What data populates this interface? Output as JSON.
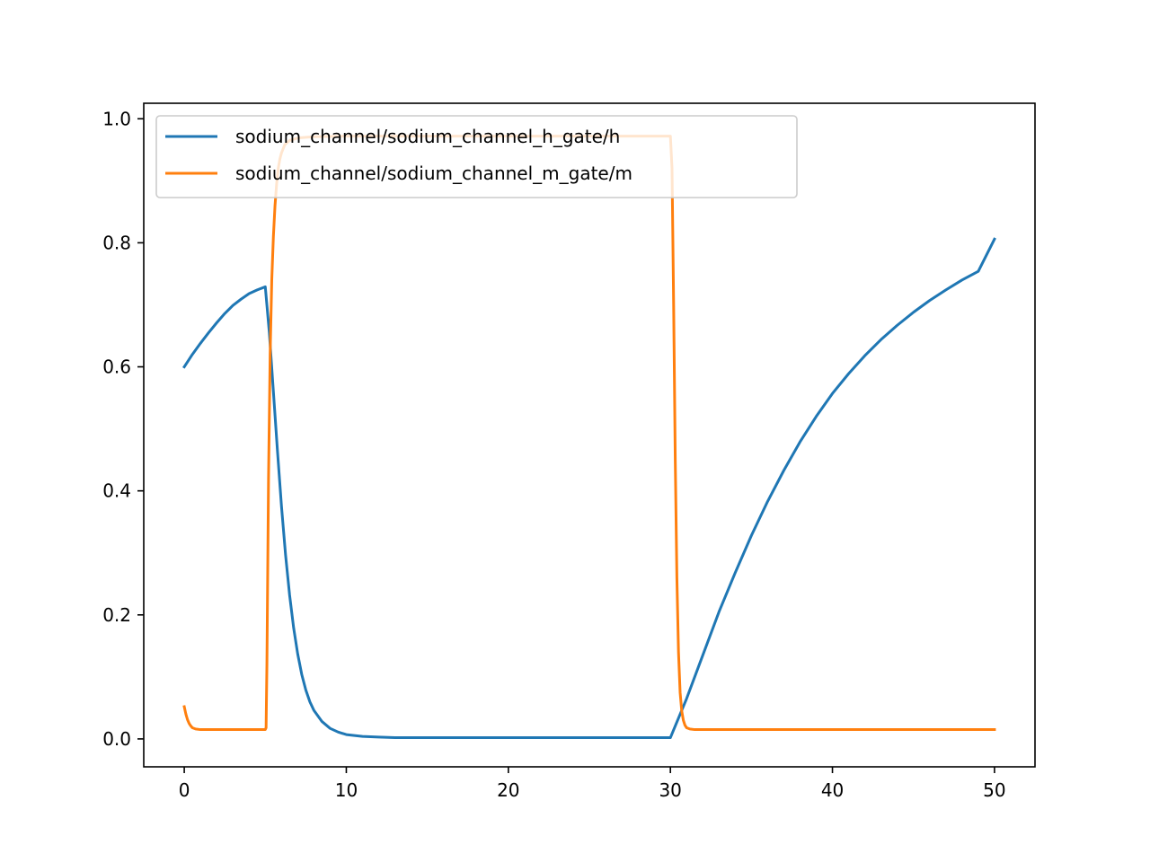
{
  "chart_data": {
    "type": "line",
    "title": "",
    "xlabel": "",
    "ylabel": "",
    "xlim": [
      -2.5,
      52.5
    ],
    "ylim": [
      -0.045,
      1.025
    ],
    "xticks": [
      0,
      10,
      20,
      30,
      40,
      50
    ],
    "yticks": [
      0.0,
      0.2,
      0.4,
      0.6,
      0.8,
      1.0
    ],
    "xtick_labels": [
      "0",
      "10",
      "20",
      "30",
      "40",
      "50"
    ],
    "ytick_labels": [
      "0.0",
      "0.2",
      "0.4",
      "0.6",
      "0.8",
      "1.0"
    ],
    "grid": false,
    "legend_position": "upper left",
    "series": [
      {
        "name": "sodium_channel/sodium_channel_h_gate/h",
        "color": "#1f77b4",
        "x": [
          0,
          0.5,
          1,
          1.5,
          2,
          2.5,
          3,
          3.5,
          4,
          4.5,
          5,
          5.25,
          5.5,
          5.75,
          6,
          6.25,
          6.5,
          6.75,
          7,
          7.25,
          7.5,
          7.75,
          8,
          8.5,
          9,
          9.5,
          10,
          11,
          12,
          13,
          14,
          15,
          20,
          25,
          30,
          31,
          32,
          33,
          34,
          35,
          36,
          37,
          38,
          39,
          40,
          41,
          42,
          43,
          44,
          45,
          46,
          47,
          48,
          49,
          50
        ],
        "y": [
          0.6,
          0.62,
          0.638,
          0.655,
          0.671,
          0.686,
          0.699,
          0.709,
          0.718,
          0.724,
          0.729,
          0.655,
          0.56,
          0.465,
          0.375,
          0.297,
          0.232,
          0.179,
          0.137,
          0.104,
          0.079,
          0.06,
          0.046,
          0.028,
          0.017,
          0.011,
          0.007,
          0.004,
          0.003,
          0.002,
          0.002,
          0.002,
          0.002,
          0.002,
          0.002,
          0.065,
          0.135,
          0.205,
          0.268,
          0.328,
          0.383,
          0.433,
          0.479,
          0.52,
          0.557,
          0.589,
          0.618,
          0.644,
          0.667,
          0.688,
          0.707,
          0.724,
          0.74,
          0.754,
          0.806
        ]
      },
      {
        "name": "sodium_channel/sodium_channel_m_gate/m",
        "color": "#ff7f0e",
        "x": [
          0,
          0.1,
          0.2,
          0.3,
          0.4,
          0.5,
          0.7,
          1,
          2,
          3,
          4,
          5,
          5.05,
          5.1,
          5.2,
          5.3,
          5.4,
          5.5,
          5.6,
          5.7,
          5.8,
          5.9,
          6,
          6.2,
          6.5,
          7,
          8,
          10,
          15,
          20,
          25,
          29.9,
          30,
          30.1,
          30.2,
          30.3,
          30.4,
          30.5,
          30.6,
          30.7,
          30.8,
          30.9,
          31,
          31.2,
          31.5,
          32,
          35,
          40,
          45,
          50
        ],
        "y": [
          0.052,
          0.04,
          0.031,
          0.025,
          0.021,
          0.018,
          0.016,
          0.015,
          0.015,
          0.015,
          0.015,
          0.015,
          0.018,
          0.12,
          0.42,
          0.62,
          0.74,
          0.81,
          0.86,
          0.895,
          0.92,
          0.935,
          0.945,
          0.958,
          0.965,
          0.969,
          0.971,
          0.972,
          0.972,
          0.972,
          0.972,
          0.972,
          0.972,
          0.92,
          0.7,
          0.45,
          0.26,
          0.14,
          0.075,
          0.045,
          0.03,
          0.022,
          0.018,
          0.016,
          0.015,
          0.015,
          0.015,
          0.015,
          0.015,
          0.015
        ]
      }
    ]
  }
}
